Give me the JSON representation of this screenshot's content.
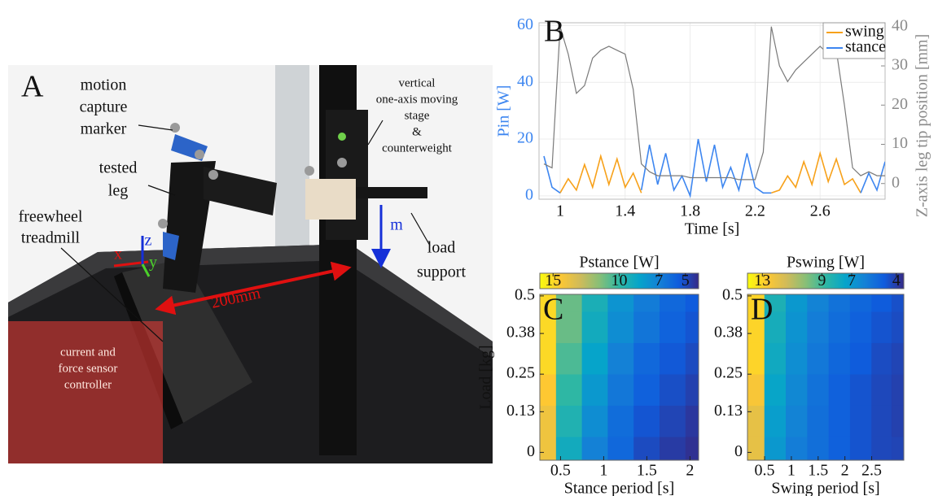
{
  "panel_a": {
    "label": "A",
    "annotations": {
      "motion_capture_marker": [
        "motion",
        "capture",
        "marker"
      ],
      "tested_leg": [
        "tested",
        "leg"
      ],
      "freewheel_treadmill": [
        "freewheel",
        "treadmill"
      ],
      "moving_stage": [
        "vertical",
        "one-axis moving",
        "stage",
        "&",
        "counterweight"
      ],
      "load_support": [
        "load",
        "support"
      ],
      "controller": [
        "current and",
        "force sensor",
        "controller"
      ],
      "distance": "200mm",
      "axis_x": "x",
      "axis_y": "y",
      "axis_z": "z",
      "mass": "m"
    }
  },
  "chart_data": [
    {
      "type": "line",
      "label": "B",
      "xlabel": "Time [s]",
      "ylabel": "Pin [W]",
      "y2label": "Z-axis leg tip position [mm]",
      "grid": true,
      "legend": "upper right",
      "xlim": [
        0.87,
        3.0
      ],
      "xticks": [
        1,
        1.4,
        1.8,
        2.2,
        2.6
      ],
      "ylim": [
        -1.2,
        61
      ],
      "yticks": [
        0,
        20,
        40,
        60
      ],
      "y2lim": [
        -4,
        41
      ],
      "y2ticks": [
        0,
        10,
        20,
        30,
        40
      ],
      "x": [
        0.9,
        0.95,
        1.0,
        1.05,
        1.1,
        1.15,
        1.2,
        1.25,
        1.3,
        1.35,
        1.4,
        1.45,
        1.5,
        1.55,
        1.6,
        1.65,
        1.7,
        1.75,
        1.8,
        1.85,
        1.9,
        1.95,
        2.0,
        2.05,
        2.1,
        2.15,
        2.2,
        2.25,
        2.3,
        2.35,
        2.4,
        2.45,
        2.5,
        2.55,
        2.6,
        2.65,
        2.7,
        2.75,
        2.8,
        2.85,
        2.9,
        2.95,
        3.0
      ],
      "series": [
        {
          "name": "swing",
          "color": "#f7a11a",
          "values": [
            null,
            null,
            1,
            6,
            2,
            11,
            3,
            14,
            4,
            13,
            3,
            8,
            1,
            null,
            null,
            null,
            null,
            null,
            null,
            null,
            null,
            null,
            null,
            null,
            null,
            null,
            null,
            null,
            1,
            2,
            7,
            3,
            12,
            4,
            15,
            5,
            13,
            4,
            6,
            1,
            null,
            null,
            null
          ]
        },
        {
          "name": "stance",
          "color": "#3d86f0",
          "values": [
            14,
            3,
            1,
            null,
            null,
            null,
            null,
            null,
            null,
            null,
            null,
            null,
            2,
            18,
            4,
            15,
            2,
            7,
            0,
            20,
            5,
            18,
            3,
            10,
            2,
            15,
            3,
            1,
            1,
            null,
            null,
            null,
            null,
            null,
            null,
            null,
            null,
            null,
            null,
            1,
            8,
            2,
            12
          ]
        },
        {
          "color": "#7a7a7a",
          "axis": "y2",
          "values": [
            5,
            4,
            40,
            33,
            23,
            25,
            32,
            34,
            35,
            34,
            33,
            24,
            5,
            3,
            2,
            2,
            2,
            2,
            1.5,
            1.5,
            1.5,
            1.5,
            1.5,
            1.5,
            1,
            1,
            1,
            8,
            40,
            30,
            26,
            29,
            31,
            33,
            35,
            33,
            34,
            20,
            4,
            2,
            3,
            2,
            2
          ]
        }
      ]
    },
    {
      "type": "heatmap",
      "label": "C",
      "xlabel": "Stance period [s]",
      "ylabel": "Load [kg]",
      "xlim": [
        0.26,
        2.1
      ],
      "xticks": [
        0.5,
        1,
        1.5,
        2
      ],
      "ylim": [
        -0.025,
        0.505
      ],
      "yticks": [
        0,
        0.13,
        0.25,
        0.38,
        0.5
      ],
      "x": [
        0.3,
        0.6,
        0.9,
        1.2,
        1.5,
        1.8,
        2.1
      ],
      "y": [
        0,
        0.1,
        0.2,
        0.3,
        0.4,
        0.5
      ],
      "z": [
        [
          14,
          9,
          7,
          6,
          5,
          4.5,
          4.2
        ],
        [
          14,
          9.5,
          7.5,
          6.2,
          5.3,
          4.8,
          4.4
        ],
        [
          14.5,
          10,
          8,
          6.6,
          5.7,
          5.1,
          4.7
        ],
        [
          15,
          10.5,
          8.5,
          7,
          6,
          5.4,
          5
        ],
        [
          15,
          11,
          9,
          7.5,
          6.5,
          5.8,
          5.3
        ],
        [
          15,
          11,
          9.3,
          7.8,
          6.8,
          6,
          5.5
        ]
      ],
      "colormap": [
        "#f9fb0e",
        "#fec832",
        "#d1bb59",
        "#87bf77",
        "#2eb7a4",
        "#06a4ca",
        "#1481d6",
        "#0f5cdd",
        "#352a87"
      ],
      "colorbar": {
        "title": "Pstance [W]",
        "clim": [
          16,
          4
        ],
        "ticks": [
          15,
          10,
          7,
          5
        ]
      }
    },
    {
      "type": "heatmap",
      "label": "D",
      "xlabel": "Swing period [s]",
      "xlim": [
        0.18,
        3.1
      ],
      "xticks": [
        0.5,
        1,
        1.5,
        2,
        2.5
      ],
      "ylim": [
        -0.025,
        0.505
      ],
      "yticks": [
        0,
        0.13,
        0.25,
        0.38,
        0.5
      ],
      "x": [
        0.3,
        0.7,
        1.1,
        1.5,
        1.9,
        2.3,
        2.7,
        3.05
      ],
      "y": [
        0,
        0.1,
        0.2,
        0.3,
        0.4,
        0.5
      ],
      "z": [
        [
          12,
          7,
          6,
          5.5,
          5,
          4.6,
          4.3,
          4.2
        ],
        [
          12,
          7.2,
          6.2,
          5.5,
          5,
          4.6,
          4.3,
          4.1
        ],
        [
          12.5,
          7.5,
          6.4,
          5.6,
          5,
          4.6,
          4.3,
          4.1
        ],
        [
          13,
          7.8,
          6.6,
          5.8,
          5.2,
          4.8,
          4.4,
          4.2
        ],
        [
          13,
          8,
          6.8,
          6,
          5.4,
          5,
          4.6,
          4.4
        ],
        [
          13,
          8.2,
          7,
          6.2,
          5.6,
          5.2,
          4.8,
          4.5
        ]
      ],
      "colormap": [
        "#f9fb0e",
        "#fec832",
        "#d1bb59",
        "#87bf77",
        "#2eb7a4",
        "#06a4ca",
        "#1481d6",
        "#0f5cdd",
        "#352a87"
      ],
      "colorbar": {
        "title": "Pswing [W]",
        "clim": [
          14,
          3.5
        ],
        "ticks": [
          13,
          9,
          7,
          4
        ]
      }
    }
  ]
}
